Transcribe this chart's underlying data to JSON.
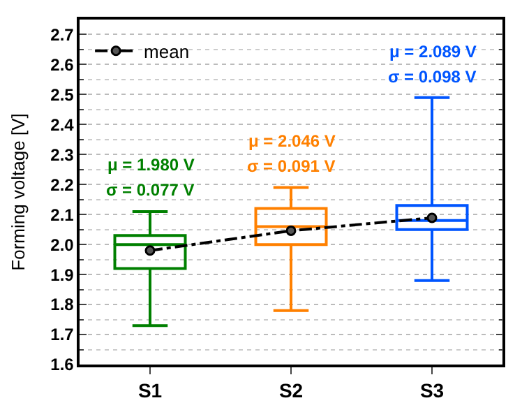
{
  "chart_data": {
    "type": "box",
    "ylabel": "Forming voltage [V]",
    "categories": [
      "S1",
      "S2",
      "S3"
    ],
    "series": [
      {
        "colors": [
          "#008000",
          "#ff8000",
          "#0055ff"
        ],
        "boxes": [
          {
            "low": 1.73,
            "q1": 1.92,
            "median": 2.0,
            "q3": 2.03,
            "high": 2.11
          },
          {
            "low": 1.78,
            "q1": 2.0,
            "median": 2.06,
            "q3": 2.12,
            "high": 2.19
          },
          {
            "low": 1.88,
            "q1": 2.05,
            "median": 2.08,
            "q3": 2.13,
            "high": 2.49
          }
        ]
      },
      {
        "type": "line",
        "name": "mean",
        "color": "#000000",
        "values": [
          1.98,
          2.046,
          2.089
        ]
      }
    ],
    "annotations": [
      "μ = 1.980 V",
      "σ = 0.077 V",
      "μ = 2.046 V",
      "σ = 0.091 V",
      "μ = 2.089 V",
      "σ = 0.098 V"
    ],
    "ylim": [
      1.6,
      2.75
    ],
    "yticks": [
      1.6,
      1.7,
      1.8,
      1.9,
      {
        "value": 2,
        "label": "2.0"
      },
      2.1,
      2.2,
      2.3,
      2.4,
      2.5,
      2.6,
      2.7
    ],
    "grid": "y",
    "legend": "top left",
    "marker": "circle",
    "line_style": "dashed"
  }
}
